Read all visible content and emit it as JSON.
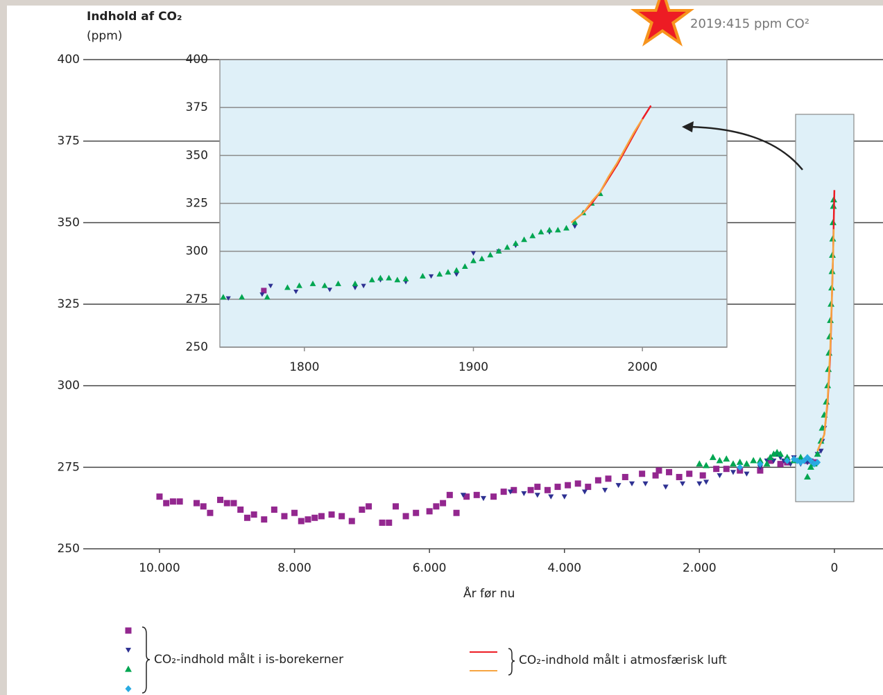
{
  "chart_data": [
    {
      "type": "scatter",
      "ylabel": [
        "Indhold af CO₂",
        "(ppm)"
      ],
      "xlabel": "År før nu",
      "annotation": "2019:415 ppm CO²",
      "legend_labels": [
        "CO₂-indhold målt i is-borekerner",
        "CO₂-indhold målt i atmosfærisk luft"
      ],
      "xlim": [
        11130,
        -720
      ],
      "ylim": [
        250,
        400
      ],
      "xticks": [
        {
          "value": 10000,
          "label": "10.000"
        },
        {
          "value": 8000,
          "label": "8.000"
        },
        {
          "value": 6000,
          "label": "6.000"
        },
        {
          "value": 4000,
          "label": "4.000"
        },
        {
          "value": 2000,
          "label": "2.000"
        },
        0
      ],
      "yticks": [
        250,
        275,
        300,
        325,
        350,
        375,
        400
      ],
      "grid": true,
      "series": [
        {
          "marker": "square",
          "color": "#93278f",
          "x": [
            10000,
            9900,
            9800,
            9700,
            9450,
            9350,
            9250,
            9100,
            9000,
            8900,
            8800,
            8700,
            8600,
            8450,
            8300,
            8150,
            8000,
            7900,
            7800,
            7700,
            7600,
            7450,
            7300,
            7150,
            7000,
            6900,
            6700,
            6600,
            6500,
            6350,
            6200,
            6000,
            5900,
            5800,
            5700,
            5600,
            5450,
            5300,
            5050,
            4900,
            4750,
            4500,
            4400,
            4250,
            4100,
            3950,
            3800,
            3650,
            3500,
            3350,
            3100,
            2850,
            2650,
            2600,
            2450,
            2300,
            2150,
            1950,
            1750,
            1600,
            1400,
            1100,
            950,
            800,
            700,
            400,
            300
          ],
          "values": [
            266,
            264,
            264.5,
            264.5,
            264,
            263,
            261,
            265,
            264,
            264,
            262,
            259.5,
            260.5,
            259,
            262,
            260,
            261,
            258.5,
            259,
            259.5,
            260,
            260.5,
            260,
            258.5,
            262,
            263,
            258,
            258,
            263,
            260,
            261,
            261.5,
            263,
            264,
            266.5,
            261,
            266,
            266.5,
            266,
            267.5,
            268,
            268,
            269,
            268,
            269,
            269.5,
            270,
            269,
            271,
            271.5,
            272,
            273,
            272.5,
            274,
            273.5,
            272,
            273,
            272.5,
            274.5,
            274.5,
            274,
            274,
            277,
            276,
            276.5,
            277,
            276.5
          ]
        },
        {
          "marker": "triangle-down",
          "color": "#2e3192",
          "x": [
            5500,
            5200,
            4800,
            4600,
            4400,
            4200,
            4000,
            3700,
            3400,
            3200,
            3000,
            2800,
            2500,
            2250,
            2000,
            1900,
            1700,
            1500,
            1300,
            1100,
            1000,
            900,
            850,
            800,
            750,
            700,
            650,
            600,
            550,
            500,
            450,
            400,
            350,
            300,
            250,
            200,
            180,
            150
          ],
          "values": [
            266.5,
            265.5,
            267.5,
            267,
            266.5,
            266,
            266,
            267.5,
            268,
            269.5,
            270,
            270,
            269,
            270,
            270,
            270.5,
            272.5,
            273.5,
            273,
            275,
            277,
            277,
            279,
            278,
            277,
            277.5,
            276,
            278,
            277,
            276,
            277,
            276.5,
            277,
            276,
            279,
            280,
            283,
            287
          ]
        },
        {
          "marker": "triangle",
          "color": "#00a651",
          "x": [
            2000,
            1900,
            1800,
            1700,
            1600,
            1500,
            1400,
            1300,
            1200,
            1100,
            1000,
            950,
            900,
            850,
            800,
            700,
            600,
            500,
            400,
            350,
            300,
            250,
            200,
            180,
            150,
            120,
            100,
            90,
            80,
            70,
            60,
            50,
            40,
            35,
            30,
            25,
            20,
            15,
            10
          ],
          "values": [
            276,
            275.5,
            278,
            277,
            277.5,
            276,
            276.5,
            276,
            277,
            277,
            276,
            278,
            279,
            279.5,
            279,
            278,
            277,
            278,
            272,
            275,
            276,
            279,
            283,
            287,
            291,
            295,
            300,
            305,
            310,
            315,
            320,
            325,
            330,
            335,
            340,
            345,
            350,
            355,
            357
          ]
        },
        {
          "marker": "diamond",
          "color": "#29abe2",
          "x": [
            1400,
            1100,
            700,
            600,
            550,
            500,
            450,
            400,
            350,
            300,
            250
          ],
          "values": [
            275,
            276,
            277,
            277.5,
            277,
            276.5,
            277,
            278,
            277,
            276,
            276.5
          ]
        },
        {
          "marker": "line",
          "color": "#ed1c24",
          "x": [
            250,
            150,
            100,
            60,
            40,
            20,
            0
          ],
          "values": [
            280,
            285,
            295,
            310,
            325,
            340,
            360
          ]
        },
        {
          "marker": "line",
          "color": "#f7a541",
          "x": [
            250,
            150,
            100,
            60,
            40,
            20,
            10
          ],
          "values": [
            280,
            285,
            296,
            312,
            326,
            340,
            348
          ]
        }
      ]
    },
    {
      "type": "scatter",
      "xlim": [
        1750,
        2050
      ],
      "ylim": [
        250,
        400
      ],
      "xticks": [
        1800,
        1900,
        2000
      ],
      "yticks": [
        250,
        275,
        300,
        325,
        350,
        375,
        400
      ],
      "grid": true,
      "series": [
        {
          "marker": "square",
          "color": "#93278f",
          "x": [
            1776
          ],
          "values": [
            279.5
          ]
        },
        {
          "marker": "triangle-down",
          "color": "#2e3192",
          "x": [
            1755,
            1775,
            1780,
            1795,
            1815,
            1830,
            1835,
            1845,
            1860,
            1875,
            1890,
            1900,
            1915,
            1925,
            1945,
            1960
          ],
          "values": [
            275.5,
            277.5,
            282,
            279,
            280,
            281,
            282,
            285,
            284,
            287,
            288,
            299,
            300,
            303,
            310,
            313
          ]
        },
        {
          "marker": "triangle",
          "color": "#00a651",
          "x": [
            1752,
            1763,
            1778,
            1790,
            1797,
            1805,
            1812,
            1820,
            1830,
            1840,
            1845,
            1850,
            1855,
            1860,
            1870,
            1880,
            1885,
            1890,
            1895,
            1900,
            1905,
            1910,
            1915,
            1920,
            1925,
            1930,
            1935,
            1940,
            1945,
            1950,
            1955,
            1960,
            1965,
            1970,
            1975
          ],
          "values": [
            276,
            276,
            276,
            281,
            282,
            283,
            282,
            283,
            283,
            285,
            286,
            286,
            285,
            285.5,
            287,
            288,
            289,
            290,
            292,
            295,
            296,
            298,
            300,
            302,
            304,
            306,
            308,
            310,
            311,
            311,
            312,
            315,
            320,
            325,
            330
          ]
        },
        {
          "marker": "line",
          "color": "#ed1c24",
          "x": [
            1958,
            1965,
            1970,
            1975,
            1980,
            1985,
            1990,
            1995,
            2000,
            2005
          ],
          "values": [
            315,
            320,
            325,
            331,
            338,
            345,
            353,
            361,
            369,
            376
          ]
        },
        {
          "marker": "line",
          "color": "#f7a541",
          "x": [
            1958,
            1965,
            1970,
            1975,
            1980,
            1985,
            1990,
            1995,
            2000
          ],
          "values": [
            315,
            320,
            326,
            331,
            339,
            346,
            354,
            362,
            369
          ]
        }
      ]
    }
  ]
}
